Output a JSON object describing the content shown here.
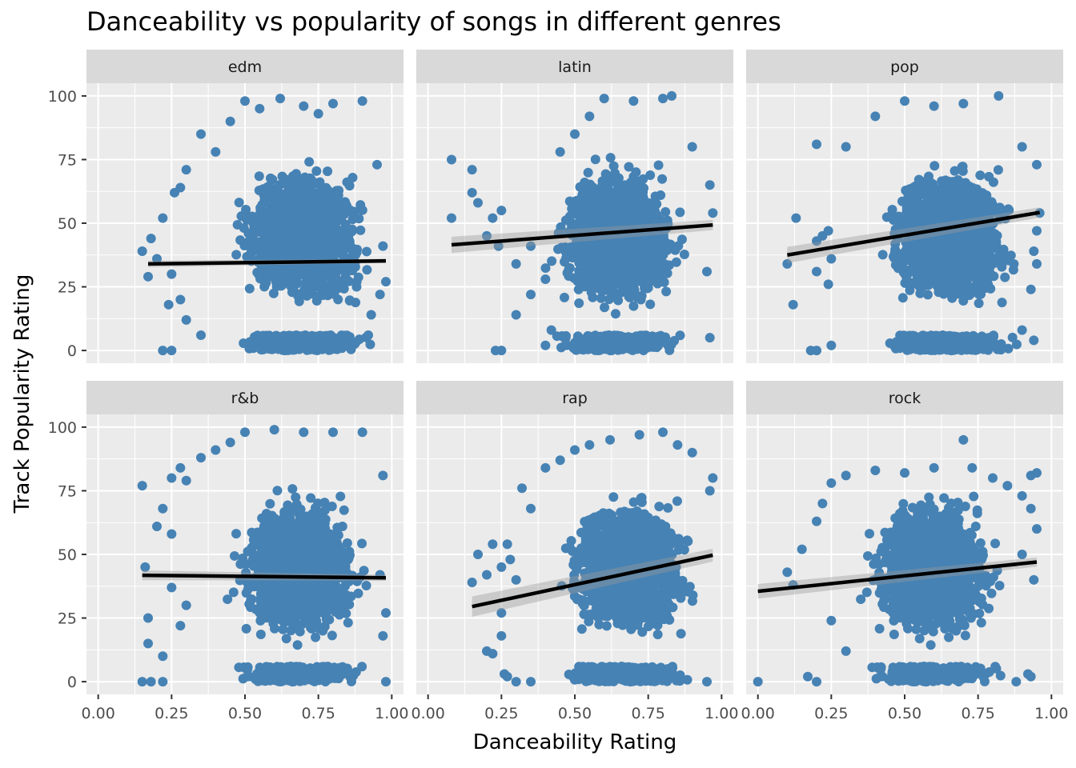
{
  "chart_data": {
    "type": "scatter",
    "title": "Danceability vs popularity of songs in different genres",
    "xlabel": "Danceability Rating",
    "ylabel": "Track Popularity Rating",
    "xlim": [
      -0.04,
      1.04
    ],
    "ylim": [
      -5,
      105
    ],
    "x_ticks": [
      0,
      0.25,
      0.5,
      0.75,
      1.0
    ],
    "x_tick_labels": [
      "0.00",
      "0.25",
      "0.50",
      "0.75",
      "1.00"
    ],
    "y_ticks": [
      0,
      25,
      50,
      75,
      100
    ],
    "y_tick_labels": [
      "0",
      "25",
      "50",
      "75",
      "100"
    ],
    "grid": true,
    "legend": "none",
    "colors": {
      "point": "#4682b4",
      "trend_line": "#000000",
      "confidence_band": "#999999",
      "panel_background": "#ebebeb",
      "strip_background": "#d9d9d9",
      "grid_major": "#ffffff"
    },
    "facets": [
      {
        "label": "edm",
        "x_range": [
          0.17,
          0.98
        ],
        "trend": [
          [
            0.17,
            34.0
          ],
          [
            0.98,
            35.2
          ]
        ],
        "band": 0.8,
        "points": [
          [
            0.15,
            39
          ],
          [
            0.18,
            44
          ],
          [
            0.2,
            36
          ],
          [
            0.22,
            52
          ],
          [
            0.17,
            29
          ],
          [
            0.24,
            18
          ],
          [
            0.25,
            30
          ],
          [
            0.26,
            62
          ],
          [
            0.28,
            64
          ],
          [
            0.3,
            71
          ],
          [
            0.35,
            85
          ],
          [
            0.4,
            78
          ],
          [
            0.45,
            90
          ],
          [
            0.5,
            98
          ],
          [
            0.55,
            95
          ],
          [
            0.62,
            99
          ],
          [
            0.7,
            96
          ],
          [
            0.75,
            93
          ],
          [
            0.8,
            97
          ],
          [
            0.9,
            98
          ],
          [
            0.95,
            73
          ],
          [
            0.97,
            41
          ],
          [
            0.96,
            22
          ],
          [
            0.98,
            27
          ],
          [
            0.3,
            12
          ],
          [
            0.28,
            20
          ],
          [
            0.35,
            6
          ],
          [
            0.22,
            0
          ],
          [
            0.25,
            0
          ],
          [
            0.92,
            6
          ],
          [
            0.93,
            14
          ]
        ]
      },
      {
        "label": "latin",
        "x_range": [
          0.08,
          0.97
        ],
        "trend": [
          [
            0.08,
            41.5
          ],
          [
            0.97,
            49.3
          ]
        ],
        "band": 2.0,
        "points": [
          [
            0.08,
            75
          ],
          [
            0.08,
            52
          ],
          [
            0.15,
            71
          ],
          [
            0.15,
            62
          ],
          [
            0.17,
            58
          ],
          [
            0.2,
            45
          ],
          [
            0.22,
            52
          ],
          [
            0.24,
            41
          ],
          [
            0.25,
            55
          ],
          [
            0.3,
            34
          ],
          [
            0.35,
            41
          ],
          [
            0.3,
            14
          ],
          [
            0.35,
            22
          ],
          [
            0.4,
            28
          ],
          [
            0.45,
            78
          ],
          [
            0.5,
            85
          ],
          [
            0.55,
            92
          ],
          [
            0.6,
            99
          ],
          [
            0.7,
            98
          ],
          [
            0.8,
            99
          ],
          [
            0.83,
            100
          ],
          [
            0.9,
            80
          ],
          [
            0.96,
            65
          ],
          [
            0.97,
            54
          ],
          [
            0.95,
            31
          ],
          [
            0.96,
            5
          ],
          [
            0.23,
            0
          ],
          [
            0.25,
            0
          ],
          [
            0.4,
            2
          ],
          [
            0.42,
            8
          ]
        ]
      },
      {
        "label": "pop",
        "x_range": [
          0.1,
          0.96
        ],
        "trend": [
          [
            0.1,
            37.5
          ],
          [
            0.96,
            54.2
          ]
        ],
        "band": 2.0,
        "points": [
          [
            0.1,
            34
          ],
          [
            0.12,
            18
          ],
          [
            0.13,
            52
          ],
          [
            0.2,
            81
          ],
          [
            0.2,
            43
          ],
          [
            0.22,
            45
          ],
          [
            0.24,
            47
          ],
          [
            0.25,
            36
          ],
          [
            0.2,
            31
          ],
          [
            0.24,
            26
          ],
          [
            0.18,
            0
          ],
          [
            0.2,
            0
          ],
          [
            0.25,
            2
          ],
          [
            0.3,
            80
          ],
          [
            0.4,
            92
          ],
          [
            0.5,
            98
          ],
          [
            0.6,
            96
          ],
          [
            0.7,
            97
          ],
          [
            0.82,
            100
          ],
          [
            0.9,
            80
          ],
          [
            0.95,
            73
          ],
          [
            0.96,
            54
          ],
          [
            0.95,
            47
          ],
          [
            0.94,
            39
          ],
          [
            0.95,
            34
          ],
          [
            0.93,
            24
          ],
          [
            0.94,
            4
          ],
          [
            0.9,
            8
          ]
        ]
      },
      {
        "label": "r&b",
        "x_range": [
          0.15,
          0.98
        ],
        "trend": [
          [
            0.15,
            41.8
          ],
          [
            0.98,
            40.8
          ]
        ],
        "band": 1.2,
        "points": [
          [
            0.15,
            77
          ],
          [
            0.16,
            45
          ],
          [
            0.17,
            25
          ],
          [
            0.17,
            15
          ],
          [
            0.15,
            0
          ],
          [
            0.18,
            0
          ],
          [
            0.22,
            0
          ],
          [
            0.22,
            10
          ],
          [
            0.2,
            61
          ],
          [
            0.22,
            68
          ],
          [
            0.25,
            58
          ],
          [
            0.25,
            80
          ],
          [
            0.28,
            84
          ],
          [
            0.3,
            79
          ],
          [
            0.35,
            88
          ],
          [
            0.4,
            91
          ],
          [
            0.45,
            94
          ],
          [
            0.5,
            98
          ],
          [
            0.6,
            99
          ],
          [
            0.7,
            98
          ],
          [
            0.8,
            98
          ],
          [
            0.9,
            98
          ],
          [
            0.97,
            81
          ],
          [
            0.96,
            42
          ],
          [
            0.98,
            27
          ],
          [
            0.97,
            18
          ],
          [
            0.98,
            0
          ],
          [
            0.3,
            30
          ],
          [
            0.25,
            37
          ],
          [
            0.28,
            22
          ]
        ]
      },
      {
        "label": "rap",
        "x_range": [
          0.15,
          0.97
        ],
        "trend": [
          [
            0.15,
            29.5
          ],
          [
            0.97,
            49.7
          ]
        ],
        "band": 2.5,
        "points": [
          [
            0.15,
            39
          ],
          [
            0.17,
            50
          ],
          [
            0.2,
            42
          ],
          [
            0.25,
            45
          ],
          [
            0.22,
            54
          ],
          [
            0.27,
            54
          ],
          [
            0.28,
            48
          ],
          [
            0.3,
            40
          ],
          [
            0.32,
            76
          ],
          [
            0.35,
            68
          ],
          [
            0.4,
            84
          ],
          [
            0.45,
            87
          ],
          [
            0.5,
            91
          ],
          [
            0.55,
            93
          ],
          [
            0.62,
            95
          ],
          [
            0.72,
            97
          ],
          [
            0.8,
            98
          ],
          [
            0.85,
            93
          ],
          [
            0.9,
            90
          ],
          [
            0.97,
            80
          ],
          [
            0.96,
            75
          ],
          [
            0.25,
            27
          ],
          [
            0.2,
            12
          ],
          [
            0.22,
            11
          ],
          [
            0.25,
            18
          ],
          [
            0.26,
            3
          ],
          [
            0.27,
            2
          ],
          [
            0.3,
            0
          ],
          [
            0.35,
            0
          ],
          [
            0.95,
            0
          ]
        ]
      },
      {
        "label": "rock",
        "x_range": [
          0.0,
          0.95
        ],
        "trend": [
          [
            0.0,
            35.5
          ],
          [
            0.95,
            47.0
          ]
        ],
        "band": 1.8,
        "points": [
          [
            0.0,
            0
          ],
          [
            0.1,
            43
          ],
          [
            0.12,
            38
          ],
          [
            0.15,
            52
          ],
          [
            0.17,
            2
          ],
          [
            0.2,
            0
          ],
          [
            0.2,
            63
          ],
          [
            0.22,
            70
          ],
          [
            0.25,
            78
          ],
          [
            0.3,
            81
          ],
          [
            0.4,
            83
          ],
          [
            0.5,
            82
          ],
          [
            0.6,
            84
          ],
          [
            0.7,
            95
          ],
          [
            0.73,
            84
          ],
          [
            0.8,
            80
          ],
          [
            0.85,
            77
          ],
          [
            0.9,
            73
          ],
          [
            0.95,
            82
          ],
          [
            0.93,
            81
          ],
          [
            0.95,
            60
          ],
          [
            0.93,
            68
          ],
          [
            0.9,
            50
          ],
          [
            0.94,
            40
          ],
          [
            0.92,
            3
          ],
          [
            0.93,
            2
          ],
          [
            0.88,
            0
          ],
          [
            0.3,
            12
          ],
          [
            0.25,
            24
          ]
        ]
      }
    ]
  }
}
